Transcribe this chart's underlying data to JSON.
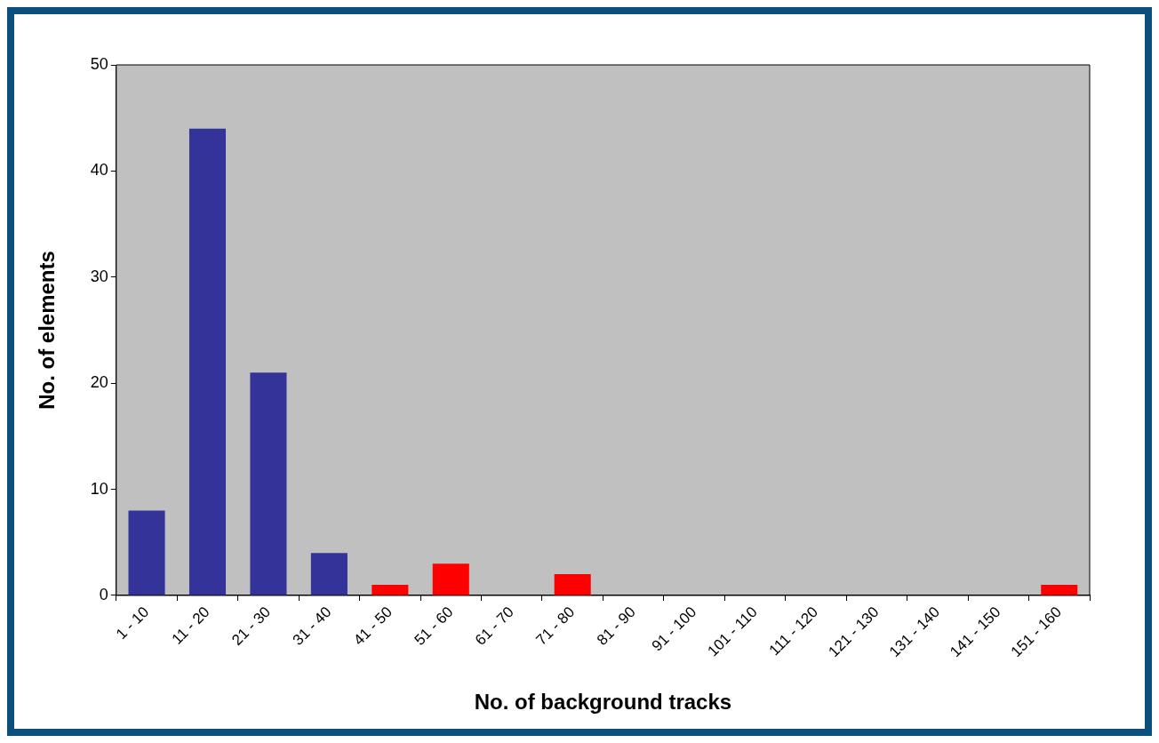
{
  "chart_data": {
    "type": "bar",
    "xlabel": "No. of background tracks",
    "ylabel": "No. of elements",
    "categories": [
      "1 - 10",
      "11 - 20",
      "21 - 30",
      "31 - 40",
      "41 - 50",
      "51 - 60",
      "61 - 70",
      "71 - 80",
      "81 - 90",
      "91 - 100",
      "101 - 110",
      "111 - 120",
      "121 - 130",
      "131 - 140",
      "141 - 150",
      "151 - 160"
    ],
    "values": [
      8,
      44,
      21,
      4,
      1,
      3,
      0,
      2,
      0,
      0,
      0,
      0,
      0,
      0,
      0,
      1
    ],
    "colors": [
      "#333399",
      "#333399",
      "#333399",
      "#333399",
      "#ff0000",
      "#ff0000",
      "#ff0000",
      "#ff0000",
      "#ff0000",
      "#ff0000",
      "#ff0000",
      "#ff0000",
      "#ff0000",
      "#ff0000",
      "#ff0000",
      "#ff0000"
    ],
    "ylim": [
      0,
      50
    ],
    "yticks": [
      0,
      10,
      20,
      30,
      40,
      50
    ],
    "grid": false,
    "legend": false
  }
}
